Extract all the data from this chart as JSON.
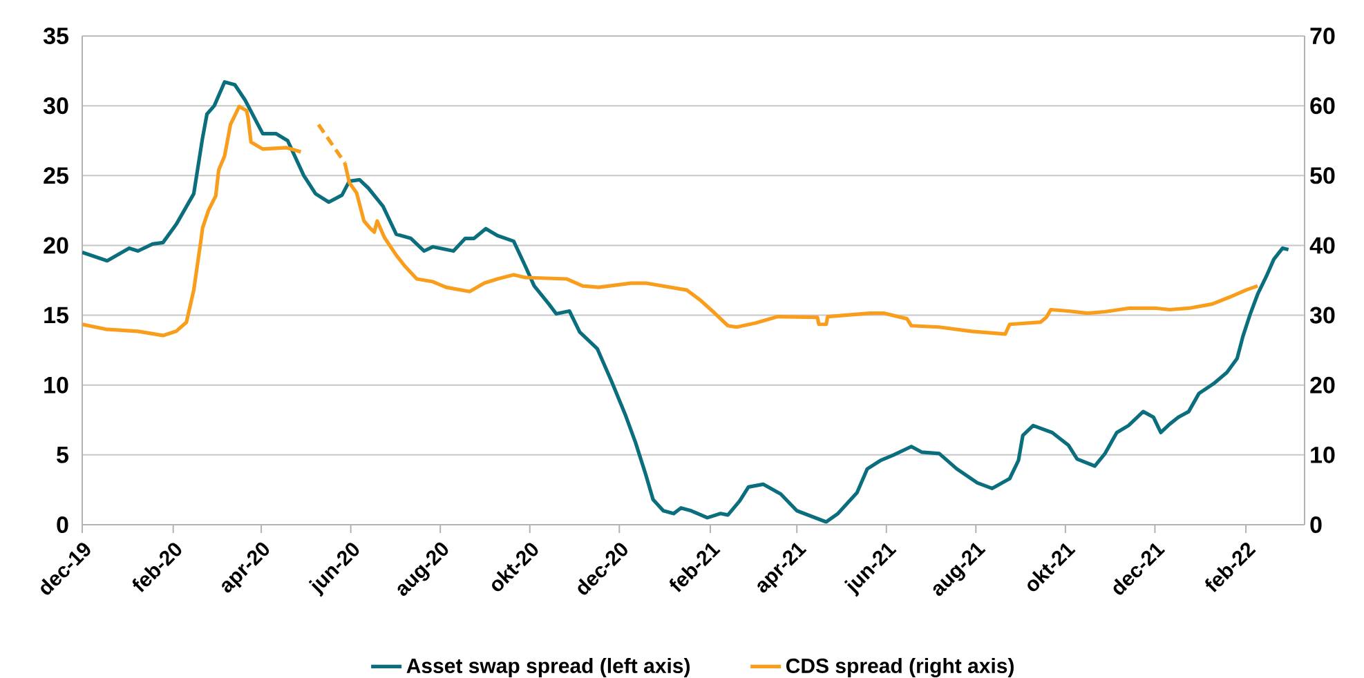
{
  "chart_data": {
    "type": "line",
    "xlim": [
      "2019-12-01",
      "2022-03-13"
    ],
    "xticks": [
      {
        "value": "2019-12-01",
        "label": "dec-19"
      },
      {
        "value": "2020-02-01",
        "label": "feb-20"
      },
      {
        "value": "2020-04-01",
        "label": "apr-20"
      },
      {
        "value": "2020-06-01",
        "label": "jun-20"
      },
      {
        "value": "2020-08-01",
        "label": "aug-20"
      },
      {
        "value": "2020-10-01",
        "label": "okt-20"
      },
      {
        "value": "2020-12-01",
        "label": "dec-20"
      },
      {
        "value": "2021-02-01",
        "label": "feb-21"
      },
      {
        "value": "2021-04-01",
        "label": "apr-21"
      },
      {
        "value": "2021-06-01",
        "label": "jun-21"
      },
      {
        "value": "2021-08-01",
        "label": "aug-21"
      },
      {
        "value": "2021-10-01",
        "label": "okt-21"
      },
      {
        "value": "2021-12-01",
        "label": "dec-21"
      },
      {
        "value": "2022-02-01",
        "label": "feb-22"
      }
    ],
    "ylim": [
      0,
      35
    ],
    "yticks": [
      0,
      5,
      10,
      15,
      20,
      25,
      30,
      35
    ],
    "y2lim": [
      0,
      70
    ],
    "y2ticks": [
      0,
      10,
      20,
      30,
      40,
      50,
      60,
      70
    ],
    "grid": "y",
    "legend": "bottom",
    "marker": "none",
    "series": [
      {
        "name": "Asset swap spread (left axis)",
        "color": "#0a6e7d",
        "x": [
          "2019-12-01",
          "2019-12-18",
          "2020-01-02",
          "2020-01-08",
          "2020-01-18",
          "2020-01-25",
          "2020-02-03",
          "2020-02-15",
          "2020-02-21",
          "2020-02-24",
          "2020-02-29",
          "2020-03-07",
          "2020-03-14",
          "2020-03-21",
          "2020-04-02",
          "2020-04-11",
          "2020-04-19",
          "2020-04-30",
          "2020-05-08",
          "2020-05-17",
          "2020-05-26",
          "2020-05-31",
          "2020-06-07",
          "2020-06-13",
          "2020-06-23",
          "2020-07-02",
          "2020-07-12",
          "2020-07-21",
          "2020-07-27",
          "2020-08-10",
          "2020-08-18",
          "2020-08-24",
          "2020-09-01",
          "2020-09-09",
          "2020-09-20",
          "2020-09-28",
          "2020-10-04",
          "2020-10-14",
          "2020-10-19",
          "2020-10-28",
          "2020-11-04",
          "2020-11-16",
          "2020-11-26",
          "2020-12-05",
          "2020-12-12",
          "2020-12-19",
          "2020-12-24",
          "2020-12-31",
          "2021-01-07",
          "2021-01-12",
          "2021-01-19",
          "2021-01-30",
          "2021-02-08",
          "2021-02-13",
          "2021-02-21",
          "2021-02-27",
          "2021-03-09",
          "2021-03-21",
          "2021-04-01",
          "2021-04-11",
          "2021-04-21",
          "2021-04-29",
          "2021-05-12",
          "2021-05-19",
          "2021-05-28",
          "2021-06-06",
          "2021-06-18",
          "2021-06-25",
          "2021-07-07",
          "2021-07-19",
          "2021-08-02",
          "2021-08-12",
          "2021-08-24",
          "2021-08-30",
          "2021-09-02",
          "2021-09-09",
          "2021-09-22",
          "2021-10-03",
          "2021-10-09",
          "2021-10-21",
          "2021-10-28",
          "2021-11-05",
          "2021-11-13",
          "2021-11-23",
          "2021-11-30",
          "2021-12-05",
          "2021-12-11",
          "2021-12-17",
          "2021-12-24",
          "2021-12-31",
          "2022-01-10",
          "2022-01-19",
          "2022-01-26",
          "2022-01-30",
          "2022-02-04",
          "2022-02-09",
          "2022-02-15",
          "2022-02-20",
          "2022-02-26",
          "2022-03-02"
        ],
        "values": [
          19.5,
          18.9,
          19.8,
          19.6,
          20.1,
          20.2,
          21.5,
          23.7,
          27.7,
          29.4,
          30.0,
          31.7,
          31.5,
          30.4,
          28.0,
          28.0,
          27.5,
          25.0,
          23.7,
          23.1,
          23.6,
          24.6,
          24.7,
          24.1,
          22.8,
          20.8,
          20.5,
          19.6,
          19.9,
          19.6,
          20.5,
          20.5,
          21.2,
          20.7,
          20.3,
          18.5,
          17.1,
          15.8,
          15.1,
          15.3,
          13.8,
          12.6,
          10.2,
          7.9,
          5.9,
          3.6,
          1.8,
          1.0,
          0.8,
          1.2,
          1.0,
          0.5,
          0.8,
          0.7,
          1.7,
          2.7,
          2.9,
          2.2,
          1.0,
          0.6,
          0.2,
          0.8,
          2.3,
          4.0,
          4.6,
          5.0,
          5.6,
          5.2,
          5.1,
          4.0,
          3.0,
          2.6,
          3.3,
          4.6,
          6.4,
          7.1,
          6.6,
          5.7,
          4.7,
          4.2,
          5.1,
          6.6,
          7.1,
          8.1,
          7.7,
          6.6,
          7.2,
          7.7,
          8.1,
          9.4,
          10.1,
          10.9,
          11.9,
          13.5,
          15.1,
          16.5,
          17.8,
          19.0,
          19.8,
          19.7
        ]
      },
      {
        "name": "CDS spread (right axis)",
        "color": "#f99d1c",
        "axis": "y2",
        "x": [
          "2019-12-01",
          "2019-12-17",
          "2020-01-08",
          "2020-01-25",
          "2020-02-03",
          "2020-02-10",
          "2020-02-15",
          "2020-02-20",
          "2020-02-21",
          "2020-02-25",
          "2020-03-01",
          "2020-03-03",
          "2020-03-07",
          "2020-03-11",
          "2020-03-17",
          "2020-03-22",
          "2020-03-23",
          "2020-03-25",
          "2020-04-02",
          "2020-04-18",
          "2020-04-28",
          "2020-05-15",
          "2020-05-28",
          "2020-05-31",
          "2020-06-05",
          "2020-06-10",
          "2020-06-14",
          "2020-06-17",
          "2020-06-19",
          "2020-06-24",
          "2020-07-02",
          "2020-07-08",
          "2020-07-16",
          "2020-07-27",
          "2020-08-05",
          "2020-08-21",
          "2020-08-31",
          "2020-09-09",
          "2020-09-20",
          "2020-09-28",
          "2020-10-26",
          "2020-11-06",
          "2020-11-17",
          "2020-12-09",
          "2020-12-19",
          "2021-01-16",
          "2021-01-25",
          "2021-02-04",
          "2021-02-13",
          "2021-02-19",
          "2021-03-04",
          "2021-03-19",
          "2021-04-15",
          "2021-04-16",
          "2021-04-21",
          "2021-04-22",
          "2021-05-21",
          "2021-05-30",
          "2021-06-15",
          "2021-06-18",
          "2021-07-07",
          "2021-07-29",
          "2021-08-21",
          "2021-08-24",
          "2021-09-14",
          "2021-09-18",
          "2021-09-21",
          "2021-10-03",
          "2021-10-16",
          "2021-10-28",
          "2021-11-13",
          "2021-12-02",
          "2021-12-11",
          "2021-12-24",
          "2022-01-09",
          "2022-01-21",
          "2022-02-01",
          "2022-02-09"
        ],
        "values": [
          28.7,
          28.0,
          27.7,
          27.1,
          27.7,
          29.0,
          33.6,
          40.9,
          42.5,
          45.0,
          47.1,
          50.8,
          52.8,
          57.3,
          59.9,
          59.3,
          58.3,
          54.8,
          53.8,
          54.0,
          53.4,
          null,
          51.8,
          49.0,
          47.5,
          43.5,
          42.5,
          41.9,
          43.5,
          41.1,
          38.6,
          37.0,
          35.2,
          34.8,
          34.0,
          33.4,
          34.6,
          35.2,
          35.8,
          35.4,
          35.2,
          34.2,
          34.0,
          34.6,
          34.6,
          33.6,
          32.2,
          30.3,
          28.5,
          28.3,
          28.9,
          29.8,
          29.7,
          28.7,
          28.7,
          29.8,
          30.3,
          30.3,
          29.5,
          28.5,
          28.3,
          27.7,
          27.3,
          28.7,
          29.0,
          29.7,
          30.8,
          30.6,
          30.3,
          30.5,
          31.0,
          31.0,
          30.8,
          31.0,
          31.6,
          32.6,
          33.6,
          34.2
        ]
      },
      {
        "color": "#f99d1c",
        "axis": "y2",
        "line_style": "dashed",
        "x": [
          "2020-05-10",
          "2020-05-28"
        ],
        "values": [
          57.3,
          51.8
        ]
      }
    ]
  }
}
